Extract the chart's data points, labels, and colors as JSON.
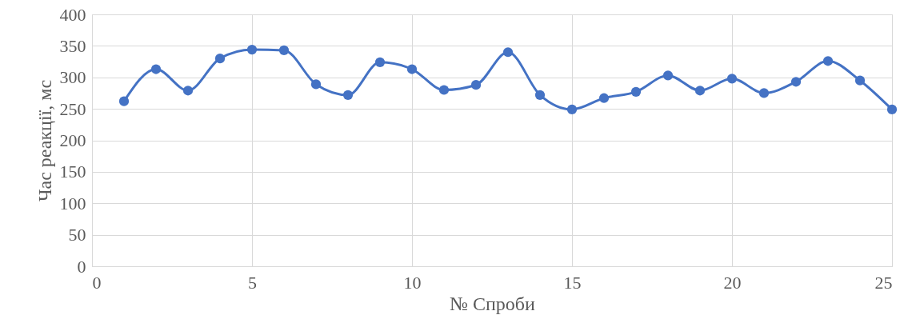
{
  "chart_data": {
    "type": "line",
    "xlabel": "№ Спроби",
    "ylabel": "Час реакції, мс",
    "x": [
      1,
      2,
      3,
      4,
      5,
      6,
      7,
      8,
      9,
      10,
      11,
      12,
      13,
      14,
      15,
      16,
      17,
      18,
      19,
      20,
      21,
      22,
      23,
      24,
      25
    ],
    "series": [
      {
        "color": "#4472c4",
        "values": [
          262,
          313,
          279,
          330,
          344,
          343,
          289,
          272,
          324,
          313,
          280,
          288,
          340,
          272,
          249,
          267,
          277,
          303,
          279,
          298,
          275,
          293,
          326,
          295,
          249
        ]
      }
    ],
    "xlim": [
      0,
      25
    ],
    "xticks": [
      0,
      5,
      10,
      15,
      20,
      25
    ],
    "ylim": [
      0,
      400
    ],
    "yticks": [
      0,
      50,
      100,
      150,
      200,
      250,
      300,
      350,
      400
    ],
    "grid": true,
    "marker": "circle",
    "line_style": "solid"
  }
}
